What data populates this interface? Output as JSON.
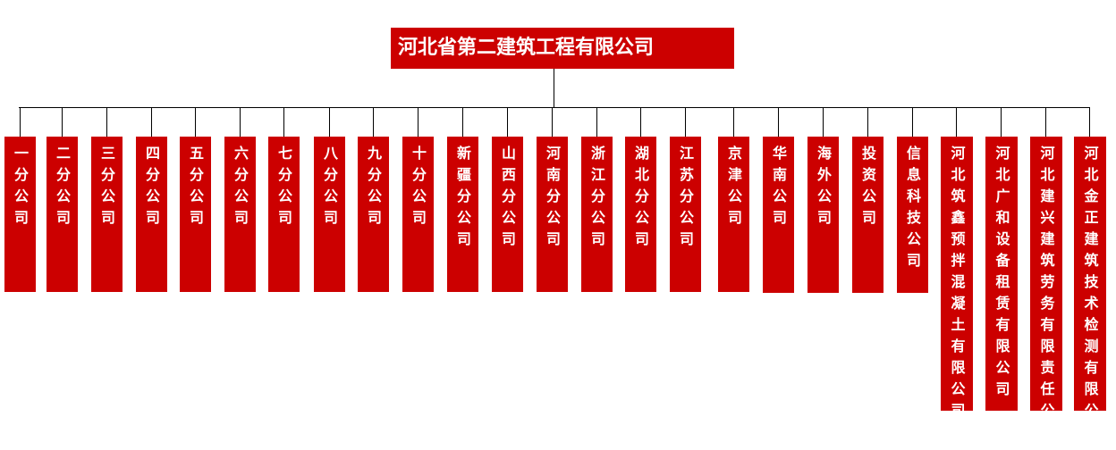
{
  "root": {
    "label": "河北省第二建筑工程有限公司"
  },
  "colors": {
    "box": "#cc0000",
    "text": "#ffffff",
    "connector": "#000000"
  },
  "children": [
    {
      "label": "一分公司"
    },
    {
      "label": "二分公司"
    },
    {
      "label": "三分公司"
    },
    {
      "label": "四分公司"
    },
    {
      "label": "五分公司"
    },
    {
      "label": "六分公司"
    },
    {
      "label": "七分公司"
    },
    {
      "label": "八分公司"
    },
    {
      "label": "九分公司"
    },
    {
      "label": "十分公司"
    },
    {
      "label": "新疆分公司"
    },
    {
      "label": "山西分公司"
    },
    {
      "label": "河南分公司"
    },
    {
      "label": "浙江分公司"
    },
    {
      "label": "湖北分公司"
    },
    {
      "label": "江苏分公司"
    },
    {
      "label": "京津公司"
    },
    {
      "label": "华南公司"
    },
    {
      "label": "海外公司"
    },
    {
      "label": "投资公司"
    },
    {
      "label": "信息科技公司"
    },
    {
      "label": "河北筑鑫预拌混凝土有限公司"
    },
    {
      "label": "河北广和设备租赁有限公司"
    },
    {
      "label": "河北建兴建筑劳务有限责任公司"
    },
    {
      "label": "河北金正建筑技术检测有限公司"
    }
  ]
}
